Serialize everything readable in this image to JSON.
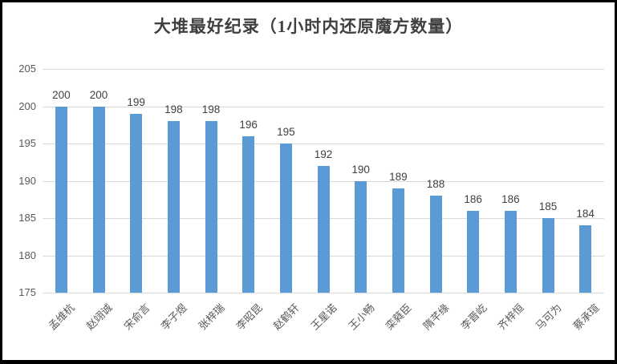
{
  "window": {
    "background_color": "#ffffff",
    "border_color": "#000000"
  },
  "chart_data": {
    "type": "bar",
    "title": "大堆最好纪录（1小时内还原魔方数量）",
    "categories": [
      "孟维杭",
      "赵翊诚",
      "宋俞言",
      "李子煜",
      "张梓瑞",
      "李昭昆",
      "赵鹤轩",
      "王星诺",
      "王小畅",
      "栾蕤臣",
      "隋芊缘",
      "李晋屹",
      "齐梓恒",
      "马可为",
      "蔡承瑄"
    ],
    "values": [
      200,
      200,
      199,
      198,
      198,
      196,
      195,
      192,
      190,
      189,
      188,
      186,
      186,
      185,
      184
    ],
    "data_labels": [
      "200",
      "200",
      "199",
      "198",
      "198",
      "196",
      "195",
      "192",
      "190",
      "189",
      "188",
      "186",
      "186",
      "185",
      "184"
    ],
    "xlabel": "",
    "ylabel": "",
    "ylim": [
      175,
      205
    ],
    "yticks": [
      205,
      200,
      195,
      190,
      185,
      180,
      175
    ],
    "grid": "horizontal",
    "legend_position": "none",
    "colors": {
      "bar": "#5b9bd5",
      "gridline": "#d9d9d9",
      "axis_tick_text": "#595959",
      "data_label_text": "#404040",
      "title_text": "#404040"
    }
  }
}
